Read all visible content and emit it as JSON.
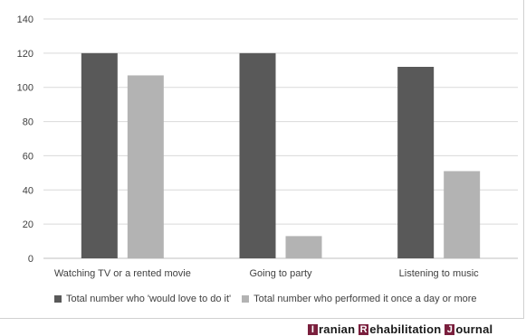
{
  "chart_data": {
    "type": "bar",
    "categories": [
      "Watching TV or a rented movie",
      "Going to party",
      "Listening to music"
    ],
    "series": [
      {
        "name": "Total number who 'would love to do it'",
        "values": [
          120,
          120,
          112
        ],
        "color": "#595959"
      },
      {
        "name": "Total number who performed it once a day or more",
        "values": [
          107,
          13,
          51
        ],
        "color": "#b3b3b3"
      }
    ],
    "yticks": [
      0,
      20,
      40,
      60,
      80,
      100,
      120,
      140
    ],
    "ylim": [
      0,
      140
    ],
    "grid": true,
    "legend_position": "bottom"
  },
  "journal": {
    "words": [
      {
        "initial": "I",
        "rest": "ranian"
      },
      {
        "initial": "R",
        "rest": "ehabilitation"
      },
      {
        "initial": "J",
        "rest": "ournal"
      }
    ],
    "accent_color": "#7a1f3d"
  }
}
